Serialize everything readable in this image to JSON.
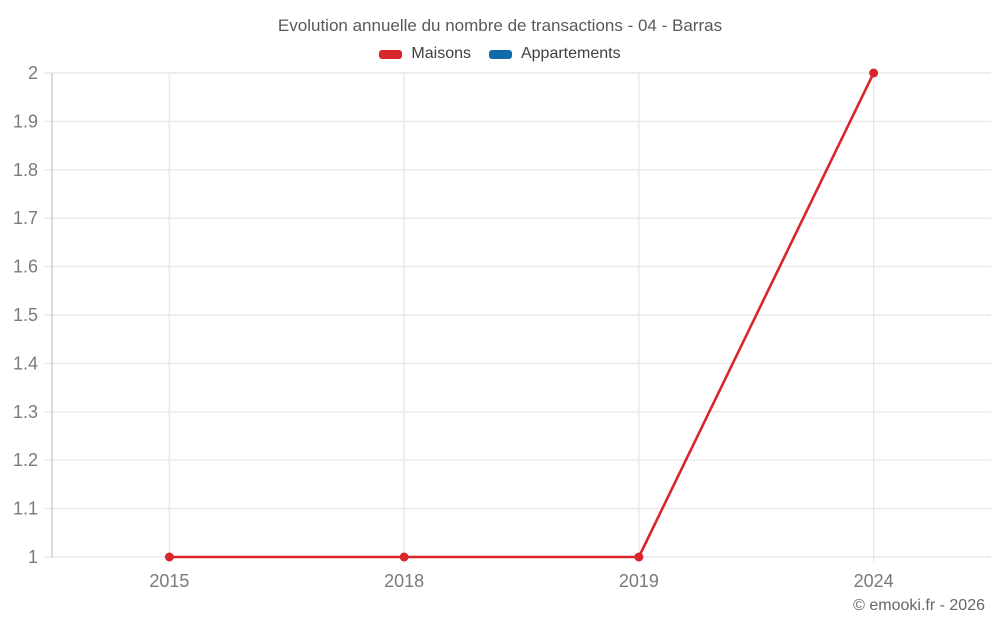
{
  "chart_data": {
    "type": "line",
    "title": "Evolution annuelle du nombre de transactions - 04 - Barras",
    "categories": [
      "2015",
      "2018",
      "2019",
      "2024"
    ],
    "series": [
      {
        "name": "Maisons",
        "color": "#d9262d",
        "values": [
          1,
          1,
          1,
          2
        ]
      },
      {
        "name": "Appartements",
        "color": "#0e6aa8",
        "values": []
      }
    ],
    "ylim": [
      1,
      2
    ],
    "yticks": {
      "values": [
        1,
        1.1,
        1.2,
        1.3,
        1.4,
        1.5,
        1.6,
        1.7,
        1.8,
        1.9,
        2
      ],
      "labels": [
        "1",
        "1.1",
        "1.2",
        "1.3",
        "1.4",
        "1.5",
        "1.6",
        "1.7",
        "1.8",
        "1.9",
        "2"
      ]
    },
    "grid": true,
    "legend_position": "top",
    "x_axis_type": "category"
  },
  "footer": {
    "copyright": "© emooki.fr - 2026"
  },
  "colors": {
    "grid": "#e9e9e9",
    "axis": "#cccccc",
    "tick_text": "#7a7a7a",
    "title_text": "#595959",
    "legend_text": "#3f3f3f",
    "footer_text": "#666666",
    "background": "#ffffff"
  }
}
